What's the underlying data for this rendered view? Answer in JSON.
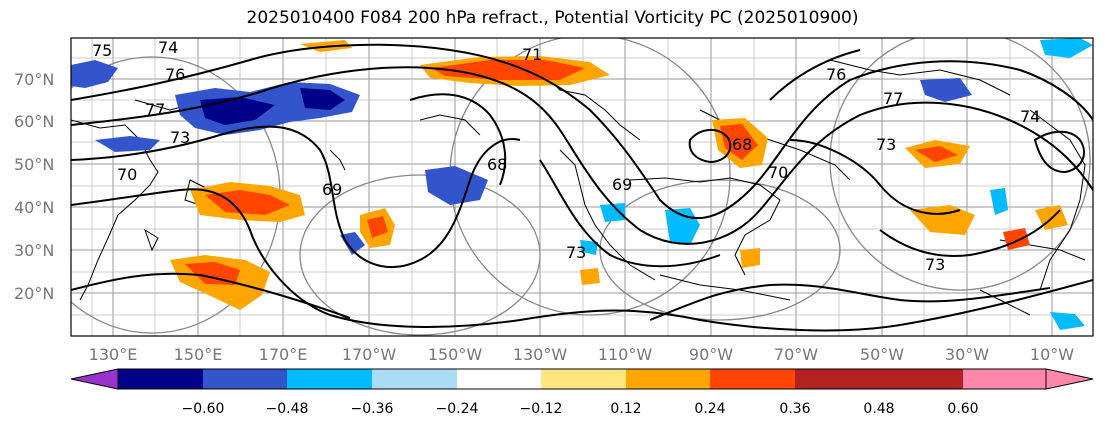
{
  "title": "2025010400 F084 200 hPa refract., Potential Vorticity PC (2025010900)",
  "lat_labels": [
    "70°N",
    "60°N",
    "50°N",
    "40°N",
    "30°N",
    "20°N"
  ],
  "lon_labels": [
    "130°E",
    "150°E",
    "170°E",
    "170°W",
    "150°W",
    "130°W",
    "110°W",
    "90°W",
    "70°W",
    "50°W",
    "30°W",
    "10°W"
  ],
  "contour_labels": [
    "75",
    "74",
    "76",
    "77",
    "73",
    "70",
    "69",
    "71",
    "76",
    "77",
    "74",
    "73",
    "68",
    "70",
    "73",
    "69",
    "68",
    "73"
  ],
  "colorbar": {
    "labels": [
      "−0.60",
      "−0.48",
      "−0.36",
      "−0.24",
      "−0.12",
      "0.12",
      "0.24",
      "0.36",
      "0.48",
      "0.60"
    ],
    "colors": [
      "#9933cc",
      "#000088",
      "#3355cc",
      "#00bbff",
      "#aaddf5",
      "#ffffff",
      "#ffe680",
      "#ffa500",
      "#ff4500",
      "#b22222",
      "#ff88aa"
    ]
  },
  "colors": {
    "strong_negative": "#000088",
    "negative": "#3355cc",
    "weak_negative": "#00bbff",
    "weak_positive": "#ffa500",
    "positive": "#ff4500"
  }
}
